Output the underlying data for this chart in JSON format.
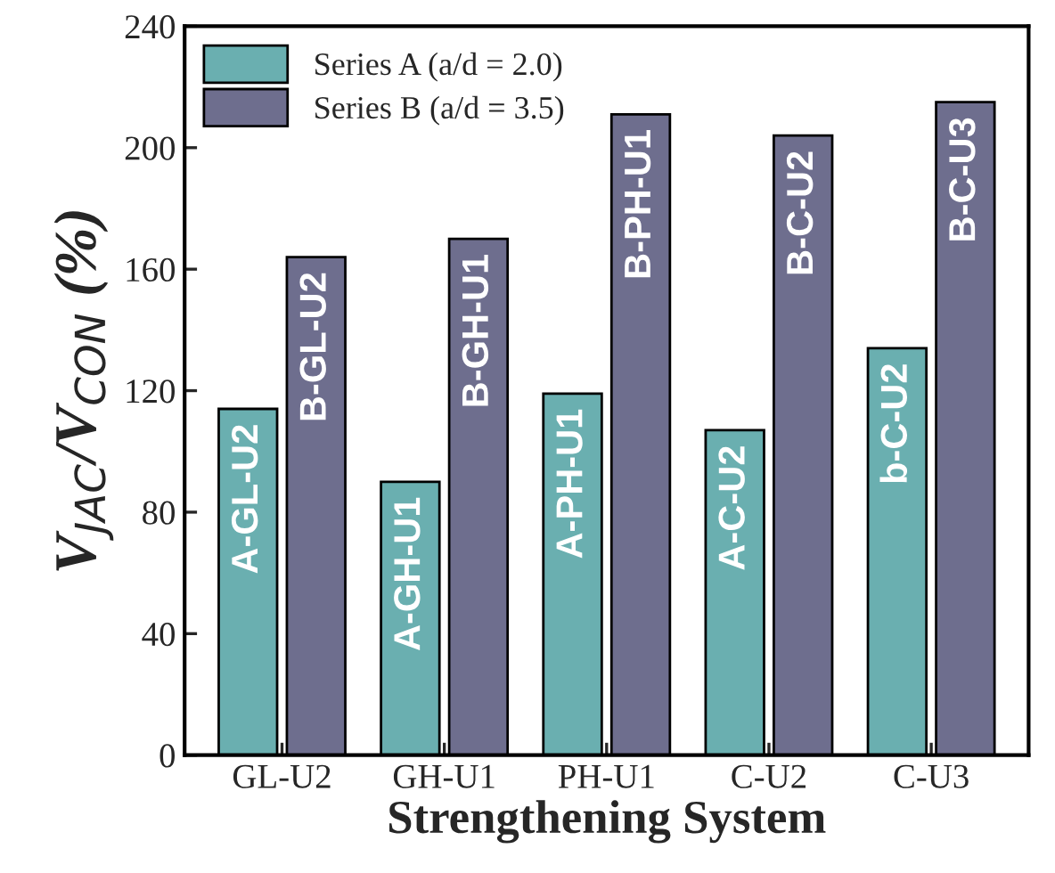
{
  "chart_data": {
    "type": "bar",
    "xlabel": "Strengthening System",
    "ylabel": "V$_{JAC}$/V$_{CON}$ (%)",
    "categories": [
      "GL-U2",
      "GH-U1",
      "PH-U1",
      "C-U2",
      "C-U3"
    ],
    "series": [
      {
        "name": "Series A (a/d = 2.0)",
        "color": "#6aafb0",
        "values": [
          114,
          90,
          119,
          107,
          134
        ]
      },
      {
        "name": "Series B (a/d = 3.5)",
        "color": "#6e6e8e",
        "values": [
          164,
          170,
          211,
          204,
          215
        ]
      }
    ],
    "annotations": [
      {
        "text": "A-GL-U2",
        "x": "GL-U2",
        "y": 114
      },
      {
        "text": "B-GL-U2",
        "x": "GL-U2",
        "y": 164
      },
      {
        "text": "A-GH-U1",
        "x": "GH-U1",
        "y": 90
      },
      {
        "text": "B-GH-U1",
        "x": "GH-U1",
        "y": 170
      },
      {
        "text": "A-PH-U1",
        "x": "PH-U1",
        "y": 119
      },
      {
        "text": "B-PH-U1",
        "x": "PH-U1",
        "y": 211
      },
      {
        "text": "A-C-U2",
        "x": "C-U2",
        "y": 107
      },
      {
        "text": "B-C-U2",
        "x": "C-U2",
        "y": 204
      },
      {
        "text": "b-C-U2",
        "x": "C-U3",
        "y": 134
      },
      {
        "text": "B-C-U3",
        "x": "C-U3",
        "y": 215
      }
    ],
    "ylim": [
      0,
      240
    ],
    "yticks": [
      0,
      40,
      80,
      120,
      160,
      200,
      240
    ],
    "legend": "top left",
    "grid": false
  }
}
